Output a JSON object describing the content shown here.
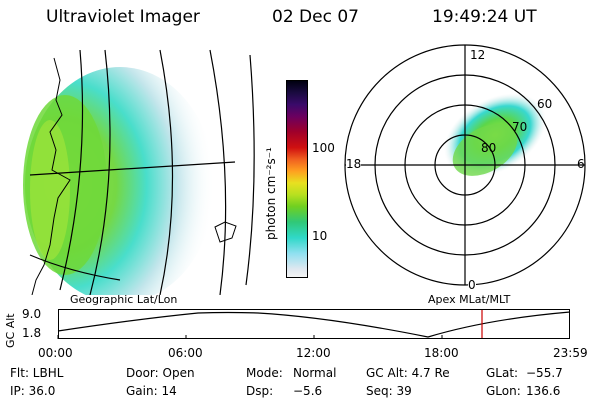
{
  "header": {
    "instrument": "Ultraviolet Imager",
    "date": "02 Dec 07",
    "time": "19:49:24 UT"
  },
  "colorbar": {
    "unit_label": "photon cm⁻²s⁻¹",
    "ticks": [
      "100",
      "10"
    ]
  },
  "polar_plot": {
    "hour_labels": [
      "12",
      "18",
      "6",
      "0"
    ],
    "lat_labels": [
      "60",
      "70",
      "80"
    ]
  },
  "map_labels": {
    "geographic": "Geographic Lat/Lon",
    "apex": "Apex MLat/MLT"
  },
  "altitude_plot": {
    "ylabel": "GC Alt",
    "yticks": [
      "9.0",
      "1.8"
    ],
    "xticks": [
      "00:00",
      "06:00",
      "12:00",
      "18:00",
      "23:59"
    ],
    "marker_time": "19:49",
    "marker_color": "#cc0000"
  },
  "status": {
    "row1": {
      "filter": "Flt: LBHL",
      "door": "Door: Open",
      "mode_label": "Mode:",
      "mode_value": "Normal",
      "gc_alt": "GC Alt: 4.7 Re",
      "glat_label": "GLat:",
      "glat_value": "−55.7"
    },
    "row2": {
      "ip": "IP: 36.0",
      "gain": "Gain: 14",
      "dsp_label": "Dsp:",
      "dsp_value": "−5.6",
      "seq": "Seq: 39",
      "glon_label": "GLon:",
      "glon_value": "136.6"
    }
  },
  "colors": {
    "aurora_green": "#7dde2a",
    "aurora_yellow": "#c8ee20",
    "aurora_cyan": "#33dddd",
    "aurora_gray": "#c8d4d4"
  }
}
